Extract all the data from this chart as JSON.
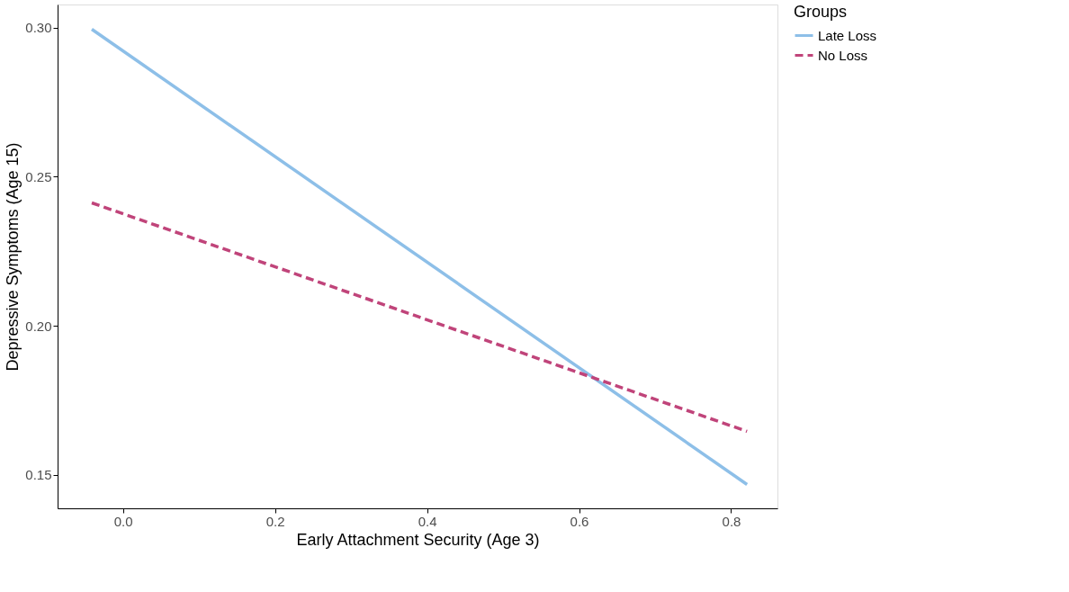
{
  "chart_data": {
    "type": "line",
    "xlabel": "Early Attachment Security (Age 3)",
    "ylabel": "Depressive Symptoms (Age 15)",
    "legend_title": "Groups",
    "legend": "right",
    "grid": false,
    "marker": "none",
    "xlim": [
      -0.086,
      0.861
    ],
    "xticks": [
      {
        "value": 0,
        "label": "0.0"
      },
      0.2,
      0.4,
      0.6,
      0.8
    ],
    "ylim": [
      0.1388,
      0.3077
    ],
    "yticks": [
      {
        "value": 0.15,
        "label": "0.15"
      },
      {
        "value": 0.2,
        "label": "0.20"
      },
      0.25,
      {
        "value": 0.3,
        "label": "0.30"
      }
    ],
    "x": [
      -0.041,
      0.821
    ],
    "series": [
      {
        "name": "Late Loss",
        "color": "#8dbfe8",
        "line_style": "solid",
        "values": [
          0.2994,
          0.1468
        ]
      },
      {
        "name": "No Loss",
        "color": "#c0447a",
        "line_style": "dashed",
        "values": [
          0.2412,
          0.1646
        ]
      }
    ]
  }
}
